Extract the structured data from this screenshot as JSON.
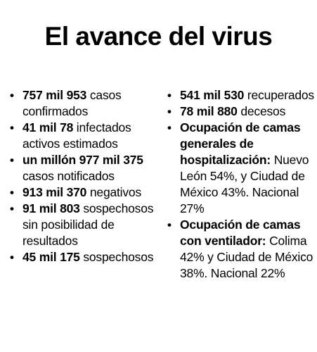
{
  "title": "El avance del virus",
  "bullet": "•",
  "left_items": [
    {
      "bold": "757 mil 953",
      "text": " casos confirmados"
    },
    {
      "bold": "41 mil 78",
      "text": " infectados activos estimados"
    },
    {
      "bold": "un millón 977 mil 375",
      "text": " casos notificados"
    },
    {
      "bold": "913 mil 370",
      "text": " negativos"
    },
    {
      "bold": "91 mil 803",
      "text": " sospechosos sin posibilidad de resultados"
    },
    {
      "bold": "45 mil 175",
      "text": " sospechosos"
    }
  ],
  "right_items": [
    {
      "bold": "541 mil 530",
      "text": " recuperados"
    },
    {
      "bold": "78 mil 880",
      "text": " decesos"
    },
    {
      "bold": "Ocupación de camas generales de hospitalización:",
      "text": " Nuevo León 54%, y Ciudad de México 43%. Nacional 27%"
    },
    {
      "bold": "Ocupación de camas con ventilador:",
      "text": " Colima 42% y Ciudad de México 38%. Nacional 22%"
    }
  ]
}
